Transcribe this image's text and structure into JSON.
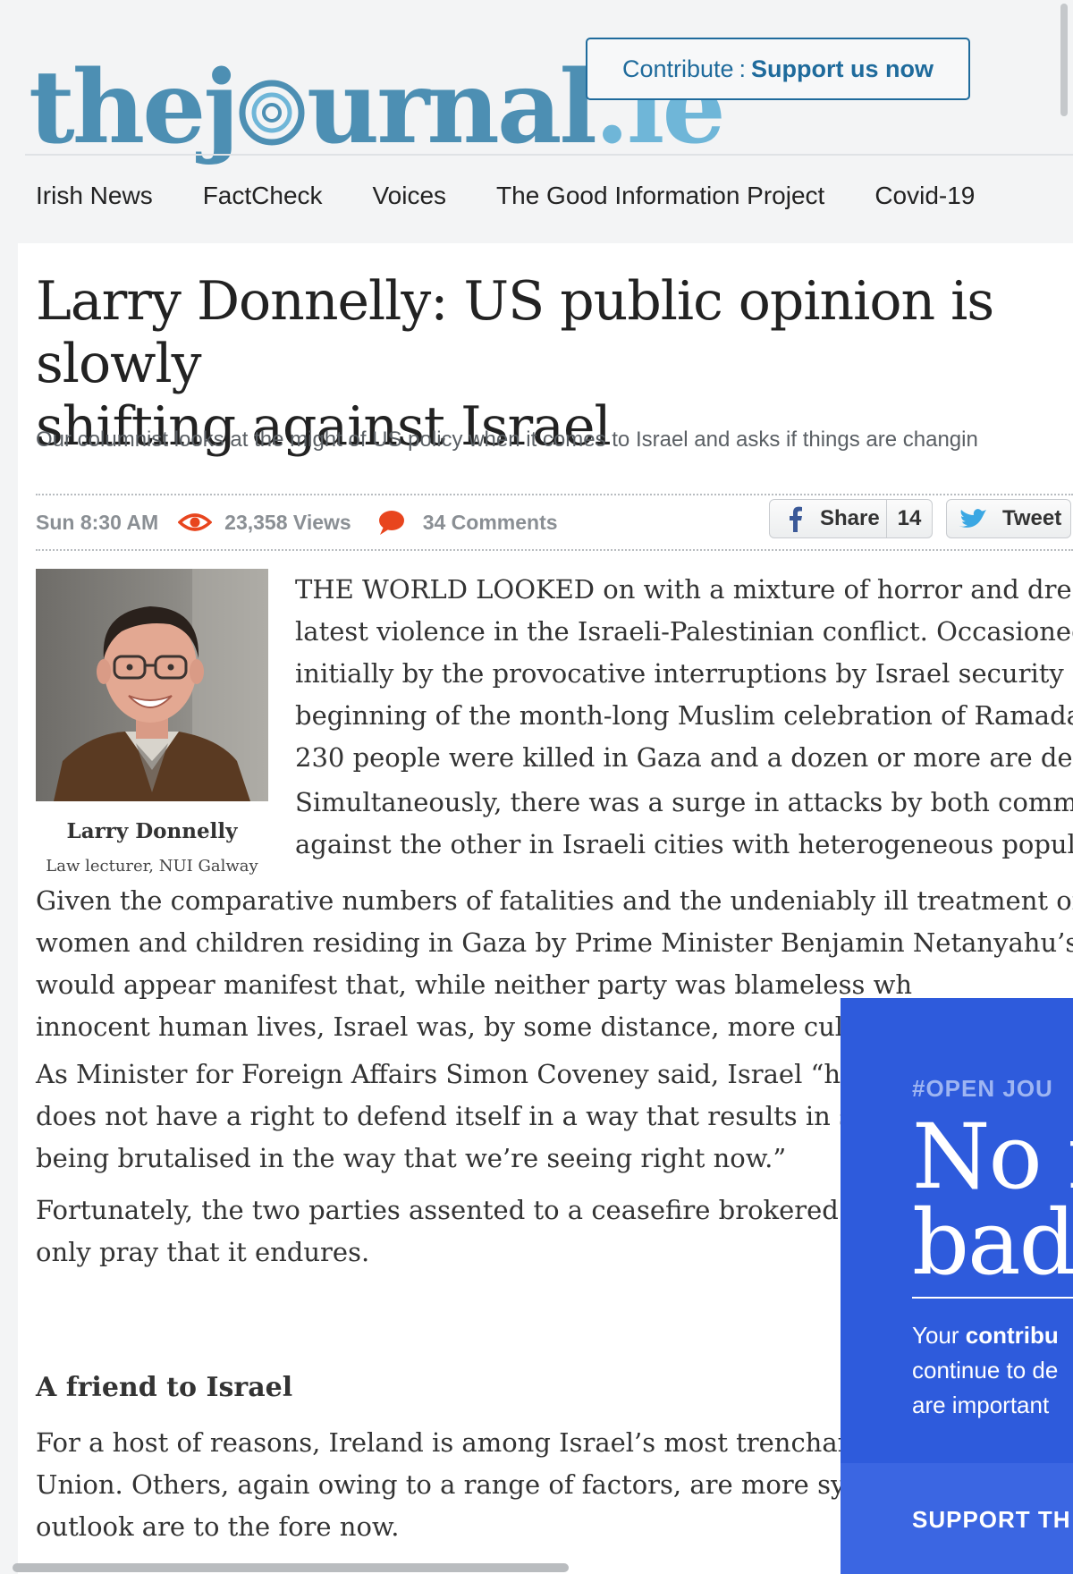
{
  "site": {
    "logo_the": "the",
    "logo_j": "j",
    "logo_urnal": "urnal",
    "logo_ie": ".ie",
    "brand_color": "#4d8fb3"
  },
  "contribute": {
    "lead": "Contribute",
    "separator": ":",
    "action": "Support us now"
  },
  "nav": {
    "items": [
      "Irish News",
      "FactCheck",
      "Voices",
      "The Good Information Project",
      "Covid-19"
    ]
  },
  "article": {
    "title_line1": "Larry Donnelly: US public opinion is slowly",
    "title_line2": "shifting against Israel",
    "subtitle": "Our columnist looks at the might of US policy when it comes to Israel and asks if things are changin",
    "time": "Sun 8:30 AM",
    "views": "23,358 Views",
    "comments": "34 Comments",
    "share_label": "Share",
    "share_count": "14",
    "tweet_label": "Tweet",
    "author_name": "Larry Donnelly",
    "author_role": "Law lecturer, NUI Galway",
    "p1": [
      "THE WORLD LOOKED on with a mixture of horror and dread",
      "latest violence in the Israeli-Palestinian conflict. Occasioned, i",
      "initially by the provocative interruptions by Israel security forc",
      "beginning of the month-long Muslim celebration of Ramadan,",
      "230 people were killed in Gaza and a dozen or more are dead i"
    ],
    "p2": [
      "Simultaneously, there was a surge in attacks by both communi",
      "against the other in Israeli cities with heterogeneous populatio"
    ],
    "p3": [
      "Given the comparative numbers of fatalities and the undeniably ill treatment of the n",
      "women and children residing in Gaza by Prime Minister Benjamin Netanyahu’s gove",
      "would appear manifest that, while neither party was blameless wh",
      "innocent human lives, Israel was, by some distance, more culpabl"
    ],
    "p4": [
      "As Minister for Foreign Affairs Simon Coveney said, Israel “has a",
      "does not have a right to defend itself in a way that results in so ma",
      "being brutalised in the way that we’re seeing right now.”"
    ],
    "p5": [
      "Fortunately, the two parties assented to a ceasefire brokered by E",
      "only pray that it endures."
    ],
    "heading": "A friend to Israel",
    "p6": [
      "For a host of reasons, Ireland is among Israel’s most trenchant cri",
      "Union. Others, again owing to a range of factors, are more sympat",
      "outlook are to the fore now."
    ]
  },
  "promo": {
    "tag": "#OPEN JOU",
    "big_line1": "No n",
    "big_line2": "bad",
    "copy_line1_pre": "Your ",
    "copy_line1_bold": "contribu",
    "copy_line2": "continue to de",
    "copy_line3": "are important",
    "cta": "SUPPORT TH",
    "bg_color": "#2e5bdc"
  }
}
